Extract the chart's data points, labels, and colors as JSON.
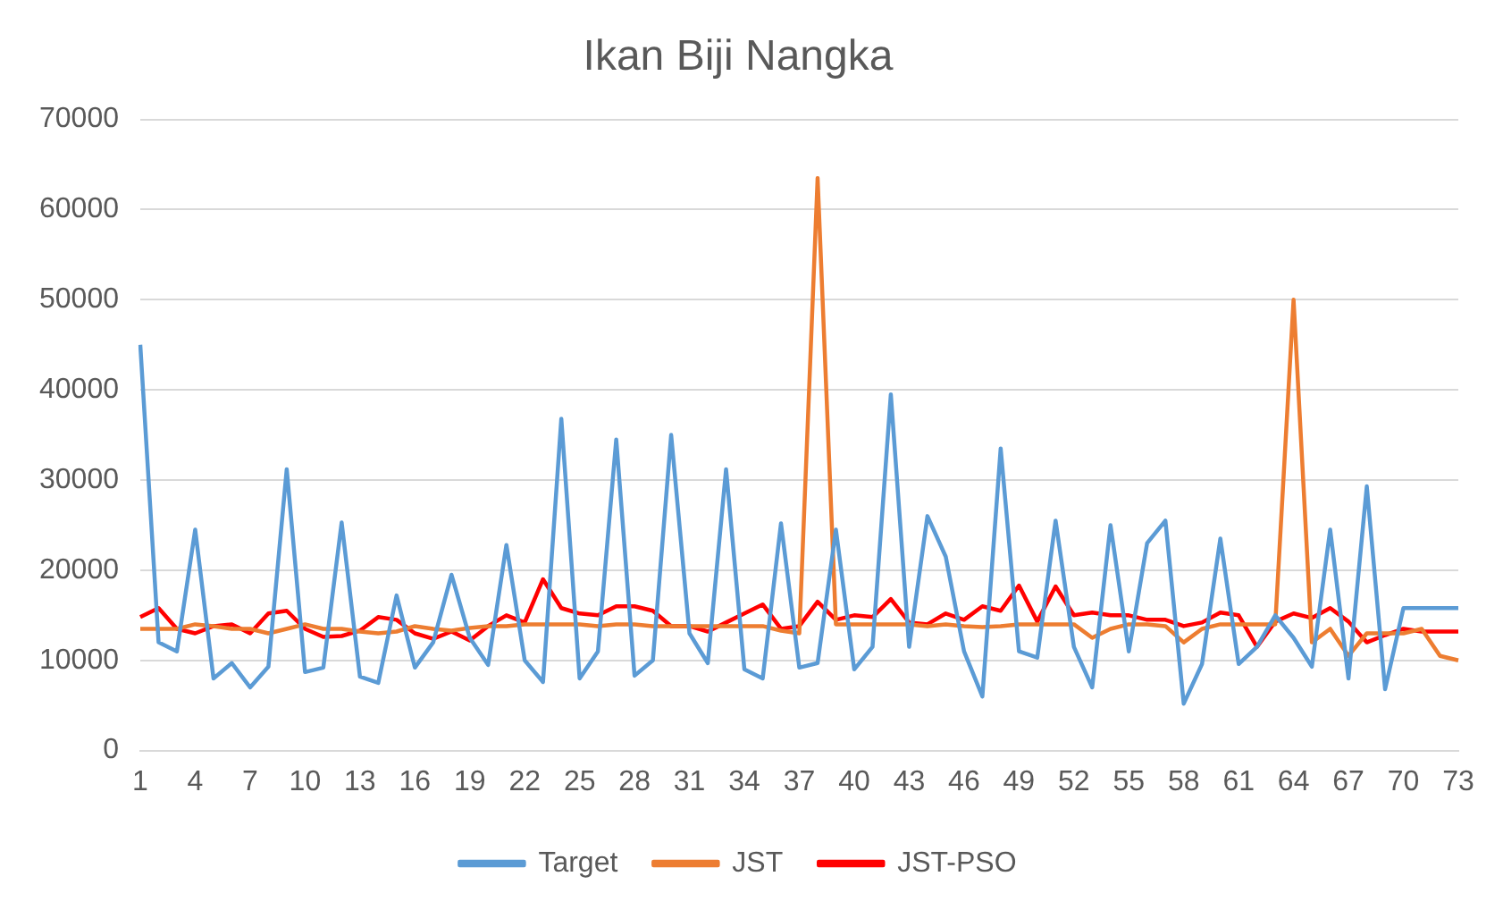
{
  "chart_data": {
    "type": "line",
    "title": "Ikan Biji Nangka",
    "categories": [
      "1",
      null,
      null,
      "4",
      null,
      null,
      "7",
      null,
      null,
      "10",
      null,
      null,
      "13",
      null,
      null,
      "16",
      null,
      null,
      "19",
      null,
      null,
      "22",
      null,
      null,
      "25",
      null,
      null,
      "28",
      null,
      null,
      "31",
      null,
      null,
      "34",
      null,
      null,
      "37",
      null,
      null,
      "40",
      null,
      null,
      "43",
      null,
      null,
      "46",
      null,
      null,
      "49",
      null,
      null,
      "52",
      null,
      null,
      "55",
      null,
      null,
      "58",
      null,
      null,
      "61",
      null,
      null,
      "64",
      null,
      null,
      "67",
      null,
      null,
      "70",
      null,
      null,
      "73"
    ],
    "series": [
      {
        "name": "Target",
        "color": "#5b9bd5",
        "values": [
          45000,
          12000,
          11000,
          24500,
          8000,
          9700,
          7000,
          9300,
          31200,
          8700,
          9200,
          25300,
          8200,
          7500,
          17200,
          9200,
          12000,
          19500,
          12500,
          9500,
          22800,
          10000,
          7600,
          36800,
          8000,
          11000,
          34500,
          8300,
          10000,
          35000,
          13000,
          9700,
          31200,
          9000,
          8000,
          25200,
          9200,
          9700,
          24500,
          9000,
          11500,
          39500,
          11500,
          26000,
          21500,
          11000,
          6000,
          33500,
          11000,
          10300,
          25500,
          11500,
          7000,
          25000,
          11000,
          23000,
          25500,
          5200,
          9600,
          23500,
          9600,
          11500,
          15000,
          12500,
          9300,
          24500,
          8000,
          29300,
          6800,
          15800,
          15800,
          15800,
          15800
        ]
      },
      {
        "name": "JST",
        "color": "#ed7d31",
        "values": [
          13500,
          13500,
          13500,
          14000,
          13800,
          13500,
          13500,
          13000,
          13500,
          14000,
          13500,
          13500,
          13200,
          13000,
          13200,
          13800,
          13500,
          13300,
          13600,
          13800,
          13800,
          14000,
          14000,
          14000,
          14000,
          13800,
          14000,
          14000,
          13800,
          13800,
          13800,
          13800,
          13800,
          13800,
          13800,
          13300,
          13000,
          63500,
          14000,
          14000,
          14000,
          14000,
          14000,
          13800,
          14000,
          13800,
          13700,
          13800,
          14000,
          14000,
          14000,
          14000,
          12500,
          13500,
          14000,
          14000,
          13800,
          12000,
          13500,
          14000,
          14000,
          14000,
          14000,
          50000,
          12000,
          13500,
          10500,
          13000,
          13000,
          13000,
          13500,
          10500,
          10000
        ]
      },
      {
        "name": "JST-PSO",
        "color": "#ff0000",
        "values": [
          14800,
          15800,
          13500,
          13000,
          13800,
          14000,
          13000,
          15200,
          15500,
          13500,
          12600,
          12700,
          13300,
          14800,
          14500,
          13000,
          12400,
          13200,
          12200,
          13800,
          15000,
          14200,
          19000,
          15800,
          15200,
          15000,
          16000,
          16000,
          15500,
          13800,
          13800,
          13200,
          14200,
          15200,
          16200,
          13500,
          13800,
          16500,
          14500,
          15000,
          14800,
          16800,
          14200,
          14000,
          15200,
          14500,
          16000,
          15500,
          18300,
          14300,
          18200,
          15000,
          15300,
          15000,
          15000,
          14500,
          14500,
          13800,
          14200,
          15300,
          15000,
          11500,
          14300,
          15200,
          14700,
          15800,
          14300,
          12000,
          12800,
          13500,
          13200,
          13200,
          13200
        ]
      }
    ],
    "ylim": [
      0,
      70000
    ],
    "yticks": [
      0,
      10000,
      20000,
      30000,
      40000,
      50000,
      60000,
      70000
    ],
    "grid": "y",
    "legend": "bottom",
    "marker": "none",
    "line_style": "solid"
  }
}
